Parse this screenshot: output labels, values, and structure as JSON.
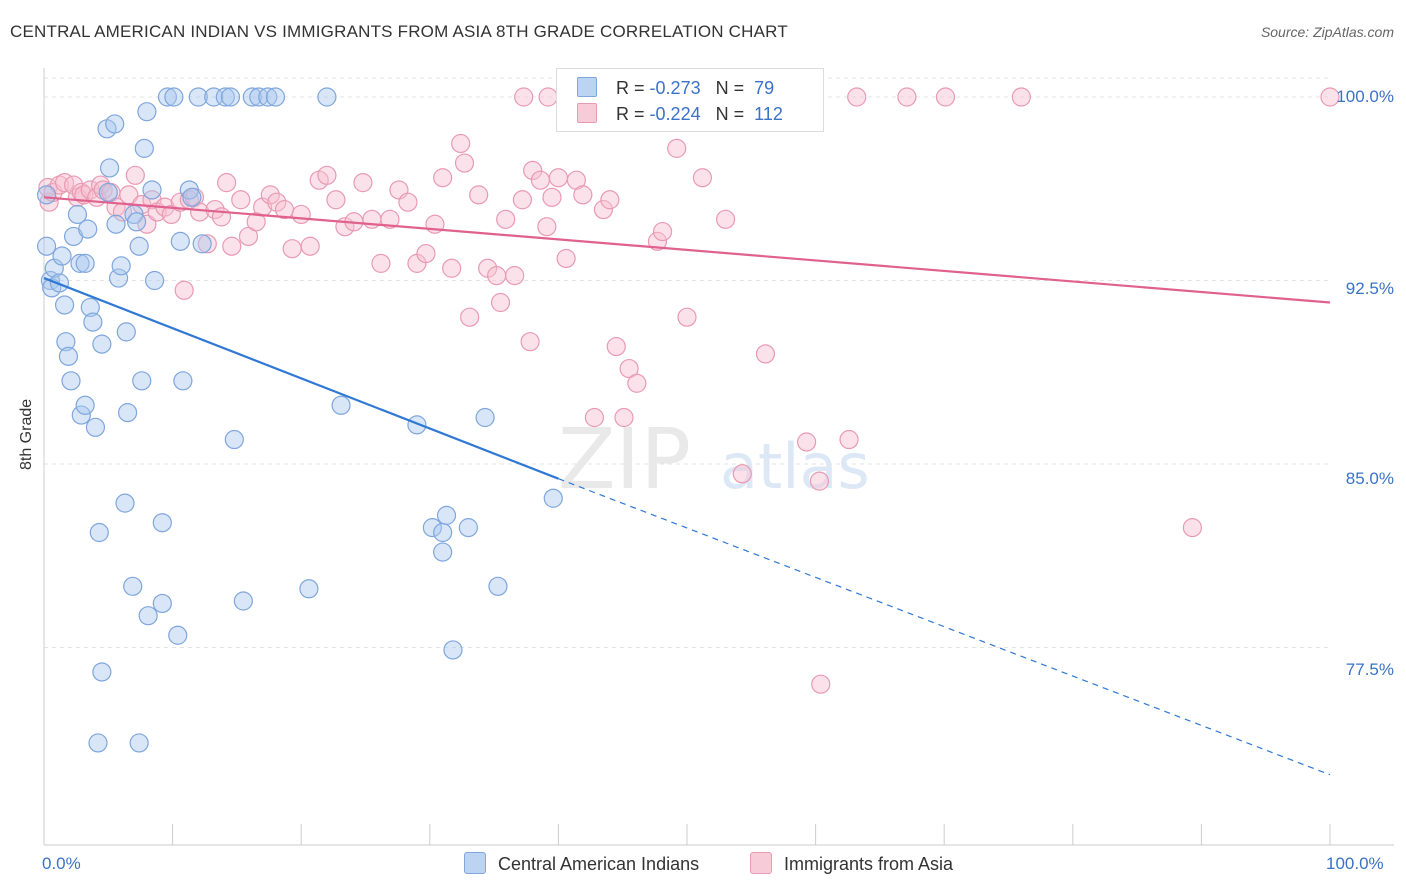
{
  "title": "CENTRAL AMERICAN INDIAN VS IMMIGRANTS FROM ASIA 8TH GRADE CORRELATION CHART",
  "source": "Source: ZipAtlas.com",
  "legend": {
    "rows": [
      {
        "r_label": "R =",
        "r_value": "-0.273",
        "n_label": "N =",
        "n_value": "79"
      },
      {
        "r_label": "R =",
        "r_value": "-0.224",
        "n_label": "N =",
        "n_value": "112"
      }
    ]
  },
  "bottom_legend": [
    "Central American Indians",
    "Immigrants from Asia"
  ],
  "colors": {
    "blue_fill": "#a9c7ee",
    "blue_stroke": "#7fa6dd",
    "blue_line": "#2f78d4",
    "pink_fill": "#f6bfd0",
    "pink_stroke": "#e99ab3",
    "pink_line": "#e0608e",
    "tick_text": "#3a72c8",
    "grid": "#e3e3e3"
  },
  "chart_data": {
    "type": "scatter",
    "title": "CENTRAL AMERICAN INDIAN VS IMMIGRANTS FROM ASIA 8TH GRADE CORRELATION CHART",
    "xlabel": "",
    "ylabel": "8th Grade",
    "xlim": [
      0,
      100
    ],
    "ylim": [
      70.5,
      101.5
    ],
    "x_tick_labels": [
      "0.0%",
      "100.0%"
    ],
    "y_ticks": [
      77.5,
      85.0,
      92.5,
      100.0
    ],
    "y_tick_labels": [
      "77.5%",
      "85.0%",
      "92.5%",
      "100.0%"
    ],
    "grid": true,
    "legend_placement": "top-center",
    "watermark": "ZIPatlas",
    "series": [
      {
        "name": "Central American Indians",
        "color": "#a9c7ee",
        "trend": {
          "x0": 0,
          "y0": 92.6,
          "x1": 40,
          "y1": 84.4,
          "dash_to_x": 100,
          "dash_to_y": 72.3
        },
        "points": [
          [
            0.2,
            96.0
          ],
          [
            0.2,
            93.9
          ],
          [
            0.5,
            92.5
          ],
          [
            0.6,
            92.2
          ],
          [
            0.8,
            93.0
          ],
          [
            1.2,
            92.4
          ],
          [
            1.4,
            93.5
          ],
          [
            1.6,
            91.5
          ],
          [
            1.7,
            90.0
          ],
          [
            1.9,
            89.4
          ],
          [
            2.1,
            88.4
          ],
          [
            2.3,
            94.3
          ],
          [
            2.6,
            95.2
          ],
          [
            2.8,
            93.2
          ],
          [
            2.9,
            87.0
          ],
          [
            3.2,
            93.2
          ],
          [
            3.2,
            87.4
          ],
          [
            3.4,
            94.6
          ],
          [
            3.6,
            91.4
          ],
          [
            3.8,
            90.8
          ],
          [
            4.0,
            86.5
          ],
          [
            4.3,
            82.2
          ],
          [
            4.5,
            89.9
          ],
          [
            4.9,
            98.7
          ],
          [
            5.0,
            96.1
          ],
          [
            5.1,
            97.1
          ],
          [
            5.5,
            98.9
          ],
          [
            5.6,
            94.8
          ],
          [
            5.8,
            92.6
          ],
          [
            6.0,
            93.1
          ],
          [
            6.4,
            90.4
          ],
          [
            6.5,
            87.1
          ],
          [
            6.9,
            80.0
          ],
          [
            7.0,
            95.2
          ],
          [
            7.2,
            94.9
          ],
          [
            7.4,
            93.9
          ],
          [
            7.6,
            88.4
          ],
          [
            7.8,
            97.9
          ],
          [
            8.0,
            99.4
          ],
          [
            8.4,
            96.2
          ],
          [
            8.6,
            92.5
          ],
          [
            9.2,
            82.6
          ],
          [
            9.6,
            100.0
          ],
          [
            10.1,
            100.0
          ],
          [
            10.4,
            78.0
          ],
          [
            10.6,
            94.1
          ],
          [
            10.8,
            88.4
          ],
          [
            11.3,
            96.2
          ],
          [
            11.5,
            95.9
          ],
          [
            12.0,
            100.0
          ],
          [
            12.3,
            94.0
          ],
          [
            13.2,
            100.0
          ],
          [
            14.1,
            100.0
          ],
          [
            14.5,
            100.0
          ],
          [
            14.8,
            86.0
          ],
          [
            15.5,
            79.4
          ],
          [
            16.2,
            100.0
          ],
          [
            16.7,
            100.0
          ],
          [
            17.4,
            100.0
          ],
          [
            18.0,
            100.0
          ],
          [
            20.6,
            79.9
          ],
          [
            22.0,
            100.0
          ],
          [
            23.1,
            87.4
          ],
          [
            29.0,
            86.6
          ],
          [
            30.2,
            82.4
          ],
          [
            31.0,
            82.2
          ],
          [
            31.0,
            81.4
          ],
          [
            31.3,
            82.9
          ],
          [
            31.8,
            77.4
          ],
          [
            33.0,
            82.4
          ],
          [
            34.3,
            86.9
          ],
          [
            35.3,
            80.0
          ],
          [
            39.6,
            83.6
          ],
          [
            4.5,
            76.5
          ],
          [
            4.2,
            73.6
          ],
          [
            7.4,
            73.6
          ],
          [
            8.1,
            78.8
          ],
          [
            6.3,
            83.4
          ],
          [
            9.2,
            79.3
          ]
        ]
      },
      {
        "name": "Immigrants from Asia",
        "color": "#f6bfd0",
        "trend": {
          "x0": 0,
          "y0": 95.9,
          "x1": 100,
          "y1": 91.6
        },
        "points": [
          [
            0.3,
            96.3
          ],
          [
            0.4,
            95.7
          ],
          [
            0.7,
            96.1
          ],
          [
            1.2,
            96.4
          ],
          [
            1.6,
            96.5
          ],
          [
            2.3,
            96.4
          ],
          [
            2.6,
            95.9
          ],
          [
            2.9,
            96.1
          ],
          [
            3.1,
            96.0
          ],
          [
            3.6,
            96.2
          ],
          [
            4.1,
            95.9
          ],
          [
            4.4,
            96.4
          ],
          [
            4.6,
            96.2
          ],
          [
            5.2,
            96.1
          ],
          [
            5.6,
            95.5
          ],
          [
            6.1,
            95.3
          ],
          [
            6.6,
            96.0
          ],
          [
            7.1,
            96.8
          ],
          [
            7.6,
            95.6
          ],
          [
            8.0,
            94.8
          ],
          [
            8.4,
            95.8
          ],
          [
            8.8,
            95.3
          ],
          [
            9.4,
            95.5
          ],
          [
            9.9,
            95.2
          ],
          [
            10.6,
            95.7
          ],
          [
            10.9,
            92.1
          ],
          [
            11.3,
            95.8
          ],
          [
            11.7,
            95.9
          ],
          [
            12.1,
            95.3
          ],
          [
            12.7,
            94.0
          ],
          [
            13.3,
            95.4
          ],
          [
            13.8,
            95.1
          ],
          [
            14.2,
            96.5
          ],
          [
            14.6,
            93.9
          ],
          [
            15.3,
            95.8
          ],
          [
            15.9,
            94.3
          ],
          [
            16.5,
            94.9
          ],
          [
            17.0,
            95.5
          ],
          [
            17.6,
            96.0
          ],
          [
            18.1,
            95.7
          ],
          [
            18.7,
            95.4
          ],
          [
            19.3,
            93.8
          ],
          [
            20.0,
            95.2
          ],
          [
            20.7,
            93.9
          ],
          [
            21.4,
            96.6
          ],
          [
            22.0,
            96.8
          ],
          [
            22.7,
            95.8
          ],
          [
            23.4,
            94.7
          ],
          [
            24.1,
            94.9
          ],
          [
            24.8,
            96.5
          ],
          [
            25.5,
            95.0
          ],
          [
            26.2,
            93.2
          ],
          [
            26.9,
            95.0
          ],
          [
            27.6,
            96.2
          ],
          [
            28.3,
            95.7
          ],
          [
            29.0,
            93.2
          ],
          [
            29.7,
            93.6
          ],
          [
            30.4,
            94.8
          ],
          [
            31.0,
            96.7
          ],
          [
            31.7,
            93.0
          ],
          [
            32.4,
            98.1
          ],
          [
            32.7,
            97.3
          ],
          [
            33.1,
            91.0
          ],
          [
            33.8,
            96.0
          ],
          [
            34.5,
            93.0
          ],
          [
            35.2,
            92.7
          ],
          [
            35.5,
            91.6
          ],
          [
            35.9,
            95.0
          ],
          [
            36.6,
            92.7
          ],
          [
            37.2,
            95.8
          ],
          [
            37.8,
            90.0
          ],
          [
            38.0,
            97.0
          ],
          [
            38.6,
            96.6
          ],
          [
            39.1,
            94.7
          ],
          [
            39.5,
            95.9
          ],
          [
            40.0,
            96.7
          ],
          [
            40.6,
            93.4
          ],
          [
            41.4,
            96.6
          ],
          [
            41.9,
            96.0
          ],
          [
            42.8,
            86.9
          ],
          [
            43.5,
            95.4
          ],
          [
            44.0,
            95.8
          ],
          [
            44.5,
            89.8
          ],
          [
            45.1,
            86.9
          ],
          [
            45.5,
            88.9
          ],
          [
            46.1,
            88.3
          ],
          [
            46.8,
            99.9
          ],
          [
            47.7,
            94.1
          ],
          [
            48.1,
            94.5
          ],
          [
            49.2,
            97.9
          ],
          [
            50.0,
            91.0
          ],
          [
            51.2,
            96.7
          ],
          [
            52.1,
            100.0
          ],
          [
            53.0,
            95.0
          ],
          [
            54.3,
            84.6
          ],
          [
            55.2,
            100.0
          ],
          [
            56.1,
            89.5
          ],
          [
            57.2,
            100.0
          ],
          [
            59.3,
            85.9
          ],
          [
            60.3,
            84.3
          ],
          [
            62.6,
            86.0
          ],
          [
            63.2,
            100.0
          ],
          [
            67.1,
            100.0
          ],
          [
            70.1,
            100.0
          ],
          [
            76.0,
            100.0
          ],
          [
            89.3,
            82.4
          ],
          [
            100.0,
            100.0
          ],
          [
            60.4,
            76.0
          ],
          [
            37.3,
            100.0
          ],
          [
            48.8,
            100.0
          ],
          [
            42.6,
            100.0
          ],
          [
            39.2,
            100.0
          ]
        ]
      }
    ]
  }
}
